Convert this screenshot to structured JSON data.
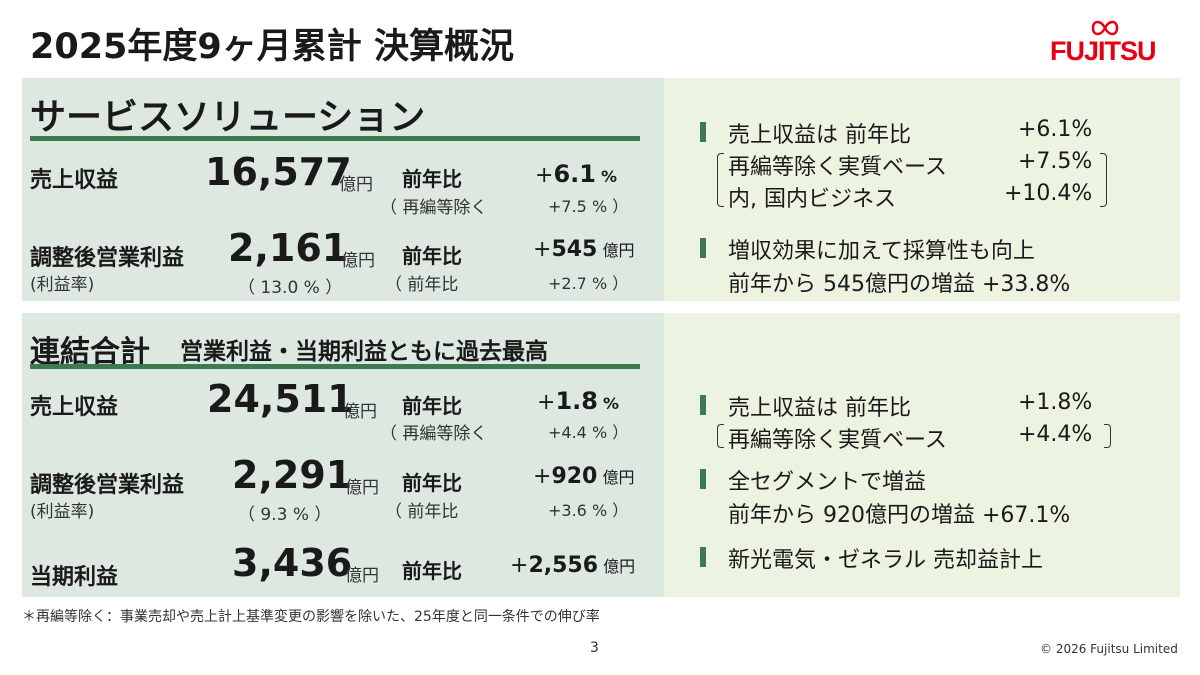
{
  "title": "2025年度9ヶ月累計 決算概況",
  "logo_text": "FUJITSU",
  "service": {
    "heading": "サービスソリューション",
    "revenue": {
      "label": "売上収益",
      "value": "16,577",
      "unit": "億円",
      "yoy_label": "前年比",
      "yoy_sign": "+",
      "yoy_value": "6.1",
      "yoy_unit": "%",
      "sub_label": "（ 再編等除く",
      "sub_value": "+7.5 % ）"
    },
    "profit": {
      "label": "調整後営業利益",
      "label_sub": "(利益率)",
      "value": "2,161",
      "unit": "億円",
      "margin": "（ 13.0 % ）",
      "yoy_label": "前年比",
      "yoy_sign": "+",
      "yoy_value": "545",
      "yoy_unit": "億円",
      "sub_label": "（ 前年比",
      "sub_value": "+2.7 % ）"
    },
    "notes": [
      {
        "text": "売上収益は 前年比",
        "value": "+6.1%"
      },
      {
        "text": "再編等除く実質ベース",
        "value": "+7.5%"
      },
      {
        "text": "内, 国内ビジネス",
        "value": "+10.4%"
      },
      {
        "text": "増収効果に加えて採算性も向上"
      },
      {
        "text": "前年から 545億円の増益 +33.8%"
      }
    ]
  },
  "consolidated": {
    "heading": "連結合計",
    "subheading": "営業利益・当期利益ともに過去最高",
    "revenue": {
      "label": "売上収益",
      "value": "24,511",
      "unit": "億円",
      "yoy_label": "前年比",
      "yoy_sign": "+",
      "yoy_value": "1.8",
      "yoy_unit": "%",
      "sub_label": "（ 再編等除く",
      "sub_value": "+4.4 % ）"
    },
    "profit": {
      "label": "調整後営業利益",
      "label_sub": "(利益率)",
      "value": "2,291",
      "unit": "億円",
      "margin": "（ 9.3 % ）",
      "yoy_label": "前年比",
      "yoy_sign": "+",
      "yoy_value": "920",
      "yoy_unit": "億円",
      "sub_label": "（ 前年比",
      "sub_value": "+3.6 % ）"
    },
    "net": {
      "label": "当期利益",
      "value": "3,436",
      "unit": "億円",
      "yoy_label": "前年比",
      "yoy_sign": "+",
      "yoy_value": "2,556",
      "yoy_unit": "億円"
    },
    "notes": [
      {
        "text": "売上収益は 前年比",
        "value": "+1.8%"
      },
      {
        "text": "再編等除く実質ベース",
        "value": "+4.4%"
      },
      {
        "text": "全セグメントで増益"
      },
      {
        "text": "前年から 920億円の増益 +67.1%"
      },
      {
        "text": "新光電気・ゼネラル 売却益計上"
      }
    ]
  },
  "footnote": "＊再編等除く：事業売却や売上計上基準変更の影響を除いた、25年度と同一条件での伸び率",
  "page_number": "3",
  "copyright": "© 2026 Fujitsu Limited",
  "colors": {
    "accent": "#3d7a52",
    "left_panel": "#dde9e0",
    "right_panel": "#edf3e1",
    "logo": "#e60012"
  }
}
